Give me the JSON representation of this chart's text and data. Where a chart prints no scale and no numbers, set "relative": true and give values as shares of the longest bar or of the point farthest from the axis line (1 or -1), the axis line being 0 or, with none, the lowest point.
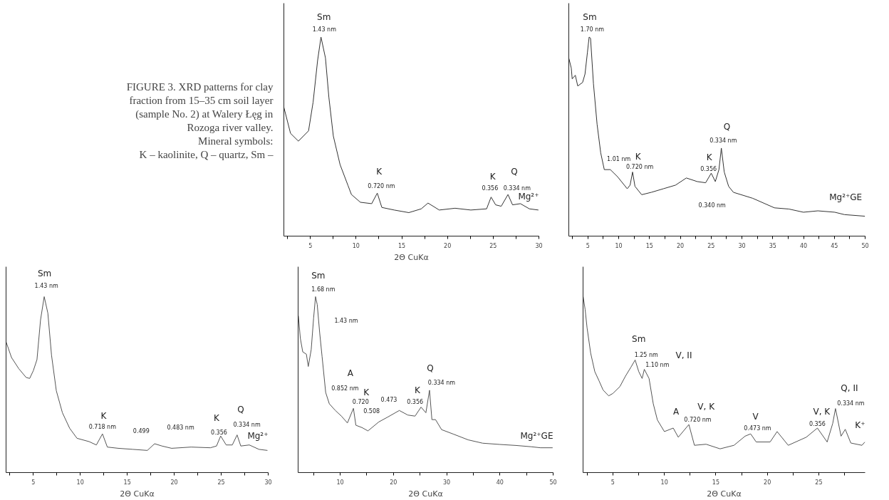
{
  "chart_data": [
    {
      "type": "other",
      "annotations": [
        "FIGURE 3. XRD patterns for clay",
        "fraction from 15–35 cm soil layer",
        "(sample No. 2) at Walery Łęg in",
        "Rozoga river valley.",
        "Mineral symbols:",
        "K – kaolinite, Q – quartz, Sm –"
      ]
    },
    {
      "type": "line",
      "relative": true,
      "xlabel": "2Θ CuKα",
      "xlim": [
        2.1,
        30
      ],
      "xticks": [
        {
          "value": 2.5,
          "label": null
        },
        5,
        {
          "value": 7.5,
          "label": null
        },
        10,
        {
          "value": 12.5,
          "label": null
        },
        15,
        {
          "value": 17.5,
          "label": null
        },
        20,
        {
          "value": 22.5,
          "label": null
        },
        25,
        {
          "value": 27.5,
          "label": null
        },
        30
      ],
      "x": [
        2.1,
        2.83,
        3.69,
        4.8,
        5.3,
        5.79,
        6.16,
        6.65,
        7.02,
        7.51,
        8.25,
        9.11,
        9.49,
        10.47,
        11.71,
        12.32,
        12.82,
        14.17,
        15.77,
        17.13,
        17.87,
        19.1,
        20.83,
        22.55,
        24.28,
        24.77,
        25.27,
        25.88,
        26.62,
        27.12,
        27.98,
        28.96,
        29.95
      ],
      "series": [
        {
          "color": "#333333",
          "values": [
            0.647,
            0.516,
            0.477,
            0.529,
            0.673,
            0.882,
            1.0,
            0.895,
            0.699,
            0.503,
            0.359,
            0.255,
            0.209,
            0.17,
            0.163,
            0.216,
            0.144,
            0.131,
            0.118,
            0.137,
            0.166,
            0.131,
            0.14,
            0.131,
            0.137,
            0.196,
            0.157,
            0.15,
            0.209,
            0.157,
            0.163,
            0.137,
            0.131
          ]
        }
      ],
      "annotations": [
        "Sm",
        "1.43 nm",
        "K",
        "0.720 nm",
        "K",
        "0.356",
        "Q",
        "0.334 nm",
        "Mg²⁺"
      ]
    },
    {
      "type": "line",
      "relative": true,
      "xlim": [
        1.9,
        50
      ],
      "xticks": [
        {
          "value": 2.5,
          "label": null
        },
        5,
        {
          "value": 7.5,
          "label": null
        },
        10,
        {
          "value": 12.5,
          "label": null
        },
        15,
        {
          "value": 17.5,
          "label": null
        },
        20,
        {
          "value": 22.5,
          "label": null
        },
        25,
        {
          "value": 27.5,
          "label": null
        },
        30,
        {
          "value": 32.5,
          "label": null
        },
        35,
        {
          "value": 37.5,
          "label": null
        },
        40,
        {
          "value": 42.5,
          "label": null
        },
        45,
        {
          "value": 47.5,
          "label": null
        },
        50
      ],
      "x": [
        1.92,
        2.3,
        2.45,
        2.96,
        3.35,
        4.14,
        4.53,
        4.92,
        5.2,
        5.43,
        5.9,
        6.49,
        7.08,
        7.66,
        8.64,
        9.82,
        11.38,
        11.85,
        12.25,
        12.64,
        13.73,
        15.3,
        17.26,
        19.22,
        20.98,
        22.74,
        24.11,
        25.02,
        25.68,
        26.27,
        26.66,
        27.13,
        27.84,
        28.62,
        31.75,
        35.28,
        37.63,
        39.98,
        42.33,
        45.07,
        46.64,
        49.97
      ],
      "series": [
        {
          "color": "#333333",
          "values": [
            0.892,
            0.844,
            0.79,
            0.808,
            0.754,
            0.772,
            0.814,
            0.922,
            1.0,
            0.994,
            0.766,
            0.562,
            0.418,
            0.334,
            0.334,
            0.298,
            0.238,
            0.256,
            0.322,
            0.25,
            0.208,
            0.22,
            0.238,
            0.256,
            0.292,
            0.274,
            0.268,
            0.316,
            0.274,
            0.334,
            0.442,
            0.322,
            0.25,
            0.22,
            0.19,
            0.142,
            0.136,
            0.12,
            0.127,
            0.12,
            0.108,
            0.1
          ]
        }
      ],
      "annotations": [
        "Sm",
        "1.70 nm",
        "1.01 nm",
        "K",
        "0.720 nm",
        "K",
        "0.356",
        "0.340 nm",
        "Q",
        "0.334 nm",
        "Mg²⁺GE"
      ]
    },
    {
      "type": "line",
      "relative": true,
      "xlabel": "2Θ CuKα",
      "xlim": [
        2.1,
        30
      ],
      "xticks": [
        {
          "value": 2.5,
          "label": null
        },
        5,
        {
          "value": 7.5,
          "label": null
        },
        10,
        {
          "value": 12.5,
          "label": null
        },
        15,
        {
          "value": 17.5,
          "label": null
        },
        20,
        {
          "value": 22.5,
          "label": null
        },
        25,
        {
          "value": 27.5,
          "label": null
        },
        30
      ],
      "x": [
        2.11,
        2.68,
        3.45,
        4.23,
        4.61,
        5.0,
        5.39,
        5.77,
        6.16,
        6.55,
        6.94,
        7.45,
        8.1,
        8.87,
        9.65,
        10.94,
        11.71,
        12.36,
        12.88,
        14.04,
        15.59,
        17.14,
        17.91,
        18.69,
        19.72,
        21.79,
        23.85,
        24.5,
        24.94,
        25.53,
        26.18,
        26.69,
        27.08,
        27.99,
        29.02,
        29.92
      ],
      "series": [
        {
          "color": "#555555",
          "values": [
            0.742,
            0.654,
            0.591,
            0.541,
            0.535,
            0.579,
            0.642,
            0.868,
            1.0,
            0.906,
            0.667,
            0.465,
            0.34,
            0.252,
            0.195,
            0.176,
            0.157,
            0.22,
            0.145,
            0.138,
            0.132,
            0.126,
            0.164,
            0.151,
            0.138,
            0.145,
            0.141,
            0.151,
            0.208,
            0.157,
            0.157,
            0.214,
            0.151,
            0.157,
            0.132,
            0.126
          ]
        }
      ],
      "annotations": [
        "Sm",
        "1.43 nm",
        "K",
        "0.718 nm",
        "0.499",
        "0.483 nm",
        "K",
        "0.356",
        "Q",
        "0.334 nm",
        "Mg²⁺"
      ]
    },
    {
      "type": "line",
      "relative": true,
      "xlabel": "2Θ CuKα",
      "xlim": [
        2.1,
        50
      ],
      "xticks": [
        {
          "value": 5,
          "label": null
        },
        10,
        {
          "value": 15,
          "label": null
        },
        20,
        {
          "value": 25,
          "label": null
        },
        30,
        {
          "value": 35,
          "label": null
        },
        40,
        {
          "value": 45,
          "label": null
        },
        50
      ],
      "x": [
        2.15,
        2.52,
        2.97,
        3.65,
        4.01,
        4.56,
        5.01,
        5.37,
        5.69,
        6.15,
        6.6,
        7.28,
        7.96,
        9.09,
        10.23,
        11.36,
        12.49,
        12.95,
        14.08,
        15.22,
        17.26,
        18.84,
        21.11,
        22.7,
        24.06,
        25.19,
        26.1,
        26.78,
        27.23,
        27.91,
        29.05,
        31.32,
        34.04,
        36.76,
        39.93,
        43.11,
        45.83,
        47.64,
        49.91
      ],
      "series": [
        {
          "color": "#555555",
          "values": [
            0.891,
            0.763,
            0.686,
            0.673,
            0.603,
            0.699,
            0.878,
            1.0,
            0.955,
            0.795,
            0.66,
            0.455,
            0.391,
            0.353,
            0.321,
            0.282,
            0.365,
            0.269,
            0.256,
            0.237,
            0.288,
            0.314,
            0.353,
            0.327,
            0.321,
            0.372,
            0.34,
            0.468,
            0.301,
            0.301,
            0.244,
            0.218,
            0.186,
            0.167,
            0.16,
            0.154,
            0.147,
            0.141,
            0.141
          ]
        }
      ],
      "annotations": [
        "Sm",
        "1.68 nm",
        "1.43 nm",
        "A",
        "0.852 nm",
        "K",
        "0.720",
        "0.508",
        "0.473",
        "K",
        "0.356",
        "Q",
        "0.334 nm",
        "Mg²⁺GE"
      ]
    },
    {
      "type": "line",
      "relative": true,
      "xlabel": "2Θ CuKα",
      "xlim": [
        2.1,
        29.5
      ],
      "xticks": [
        {
          "value": 2.5,
          "label": null
        },
        5,
        {
          "value": 7.5,
          "label": null
        },
        10,
        {
          "value": 12.5,
          "label": null
        },
        15,
        {
          "value": 17.5,
          "label": null
        },
        20,
        {
          "value": 22.5,
          "label": null
        },
        25,
        {
          "value": 27.5,
          "label": null
        }
      ],
      "x": [
        2.11,
        2.3,
        2.49,
        2.84,
        3.24,
        3.65,
        4.05,
        4.59,
        5.0,
        5.68,
        6.22,
        6.76,
        7.16,
        7.51,
        7.84,
        8.05,
        8.51,
        8.92,
        9.32,
        10.0,
        10.86,
        11.35,
        12.38,
        12.92,
        14.05,
        15.41,
        16.76,
        17.84,
        18.38,
        18.92,
        20.27,
        20.95,
        22.03,
        23.78,
        24.86,
        25.81,
        26.35,
        26.62,
        27.16,
        27.57,
        28.11,
        29.19,
        29.48
      ],
      "series": [
        {
          "color": "#555555",
          "values": [
            1.0,
            0.928,
            0.823,
            0.679,
            0.574,
            0.522,
            0.469,
            0.436,
            0.45,
            0.489,
            0.548,
            0.6,
            0.64,
            0.574,
            0.535,
            0.587,
            0.535,
            0.391,
            0.299,
            0.233,
            0.253,
            0.201,
            0.273,
            0.155,
            0.161,
            0.135,
            0.155,
            0.207,
            0.22,
            0.174,
            0.174,
            0.233,
            0.155,
            0.201,
            0.253,
            0.174,
            0.279,
            0.364,
            0.207,
            0.246,
            0.168,
            0.155,
            0.174
          ]
        }
      ],
      "annotations": [
        "Sm",
        "1.25 nm",
        "V, II",
        "1.10 nm",
        "A",
        "V, K",
        "0.720 nm",
        "V",
        "0.473 nm",
        "V, K",
        "0.356",
        "Q, II",
        "0.334 nm",
        "K⁺"
      ]
    }
  ]
}
